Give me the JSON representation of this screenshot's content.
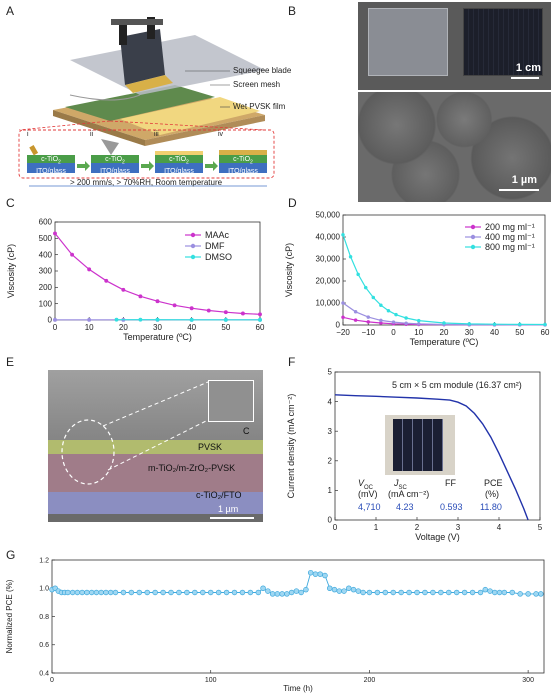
{
  "panels": {
    "A": "A",
    "B": "B",
    "C": "C",
    "D": "D",
    "E": "E",
    "F": "F",
    "G": "G"
  },
  "schematic": {
    "labels": [
      "Squeegee blade",
      "Screen mesh",
      "Wet PVSK film"
    ],
    "steps": [
      "i",
      "ii",
      "iii",
      "iv"
    ],
    "layer_top": "c-TiO",
    "layer_top_sub": "2",
    "layer_bottom": "ITO/glass",
    "conditions": "> 200 mm/s,  > 70%RH, Room temperature"
  },
  "photo": {
    "scale_top": "1 cm",
    "scale_bottom": "1 µm"
  },
  "chart_C": {
    "type": "line",
    "xlabel": "Temperature (ºC)",
    "ylabel": "Viscosity (cP)",
    "xlim": [
      0,
      60
    ],
    "ylim": [
      0,
      600
    ],
    "xticks": [
      0,
      10,
      20,
      30,
      40,
      50,
      60
    ],
    "yticks": [
      0,
      100,
      200,
      300,
      400,
      500,
      600
    ],
    "series": [
      {
        "name": "MAAc",
        "color": "#cc33cc",
        "x": [
          0,
          5,
          10,
          15,
          20,
          25,
          30,
          35,
          40,
          45,
          50,
          55,
          60
        ],
        "y": [
          530,
          400,
          310,
          240,
          185,
          145,
          115,
          90,
          72,
          58,
          48,
          40,
          35
        ]
      },
      {
        "name": "DMF",
        "color": "#9b8fe0",
        "x": [
          0,
          10,
          20,
          30,
          40,
          50,
          60
        ],
        "y": [
          1,
          1,
          1,
          1,
          1,
          1,
          1
        ]
      },
      {
        "name": "DMSO",
        "color": "#33e0e0",
        "x": [
          18,
          25,
          30,
          40,
          50,
          60
        ],
        "y": [
          2,
          2,
          2,
          1,
          1,
          1
        ]
      }
    ]
  },
  "chart_D": {
    "type": "line",
    "xlabel": "Temperature (ºC)",
    "ylabel": "Viscosity (cP)",
    "xlim": [
      -20,
      60
    ],
    "ylim": [
      0,
      50000
    ],
    "xticks": [
      -20,
      -10,
      0,
      10,
      20,
      30,
      40,
      50,
      60
    ],
    "xticklabels": [
      "−20",
      "−10",
      "0",
      "10",
      "20",
      "30",
      "40",
      "50",
      "60"
    ],
    "yticks": [
      0,
      10000,
      20000,
      30000,
      40000,
      50000
    ],
    "yticklabels": [
      "0",
      "10,000",
      "20,000",
      "30,000",
      "40,000",
      "50,000"
    ],
    "series": [
      {
        "name": "200 mg ml⁻¹",
        "color": "#cc33cc",
        "x": [
          -20,
          -15,
          -10,
          -5,
          0,
          5,
          10,
          20,
          30,
          40,
          50,
          60
        ],
        "y": [
          3500,
          2200,
          1400,
          900,
          550,
          350,
          250,
          150,
          100,
          80,
          70,
          60
        ]
      },
      {
        "name": "400 mg ml⁻¹",
        "color": "#9b8fe0",
        "x": [
          -20,
          -15,
          -10,
          -5,
          0,
          5,
          10,
          20,
          30,
          40,
          50,
          60
        ],
        "y": [
          10000,
          6000,
          3600,
          2100,
          1300,
          800,
          500,
          250,
          160,
          120,
          100,
          90
        ]
      },
      {
        "name": "800 mg ml⁻¹",
        "color": "#33e0e0",
        "x": [
          -20,
          -17,
          -14,
          -11,
          -8,
          -5,
          -2,
          1,
          5,
          10,
          20,
          30,
          40,
          50,
          60
        ],
        "y": [
          41000,
          31000,
          23000,
          17000,
          12500,
          9000,
          6500,
          4700,
          3200,
          2000,
          900,
          500,
          350,
          280,
          250
        ]
      }
    ]
  },
  "cross_section": {
    "layers": [
      "C",
      "PVSK",
      "m-TiO₂/m-ZrO₂-PVSK",
      "c-TiO₂/FTO"
    ],
    "scale": "1 µm"
  },
  "chart_F": {
    "type": "line",
    "xlabel": "Voltage (V)",
    "ylabel": "Current density (mA cm⁻²)",
    "xlim": [
      0,
      5
    ],
    "ylim": [
      0,
      5
    ],
    "xticks": [
      0,
      1,
      2,
      3,
      4,
      5
    ],
    "yticks": [
      0,
      1,
      2,
      3,
      4,
      5
    ],
    "annotation": "5 cm × 5 cm module (16.37 cm²)",
    "series": [
      {
        "name": "",
        "color": "#2233aa",
        "x": [
          0,
          0.5,
          1,
          1.5,
          2,
          2.5,
          2.8,
          3.0,
          3.2,
          3.4,
          3.6,
          3.8,
          4.0,
          4.2,
          4.4,
          4.6,
          4.71
        ],
        "y": [
          4.23,
          4.2,
          4.18,
          4.15,
          4.12,
          4.08,
          4.05,
          3.98,
          3.85,
          3.6,
          3.25,
          2.8,
          2.25,
          1.65,
          1.05,
          0.4,
          0.0
        ]
      }
    ],
    "table": {
      "headers": [
        "V_OC",
        "J_SC",
        "FF",
        "PCE"
      ],
      "header_main": [
        "V",
        "J",
        "FF",
        "PCE"
      ],
      "header_sub": [
        "OC",
        "SC",
        "",
        ""
      ],
      "units": [
        "(mV)",
        "(mA cm⁻²)",
        "",
        "(%)"
      ],
      "values": [
        "4,710",
        "4.23",
        "0.593",
        "11.80"
      ]
    }
  },
  "chart_G": {
    "type": "scatter",
    "xlabel": "Time (h)",
    "ylabel": "Normalized PCE (%)",
    "xlim": [
      0,
      310
    ],
    "ylim": [
      0.4,
      1.2
    ],
    "xticks": [
      0,
      100,
      200,
      300
    ],
    "yticks": [
      0.4,
      0.6,
      0.8,
      1.0,
      1.2
    ],
    "series": [
      {
        "name": "",
        "color": "#3fa9dd",
        "x": [
          0,
          2,
          4,
          6,
          8,
          10,
          13,
          16,
          19,
          22,
          25,
          28,
          31,
          34,
          37,
          40,
          45,
          50,
          55,
          60,
          65,
          70,
          75,
          80,
          85,
          90,
          95,
          100,
          105,
          110,
          115,
          120,
          125,
          130,
          133,
          136,
          139,
          142,
          145,
          148,
          151,
          154,
          157,
          160,
          163,
          166,
          169,
          172,
          175,
          178,
          181,
          184,
          187,
          190,
          193,
          196,
          200,
          205,
          210,
          215,
          220,
          225,
          230,
          235,
          240,
          245,
          250,
          255,
          260,
          265,
          270,
          273,
          276,
          279,
          282,
          285,
          290,
          295,
          300,
          305,
          308
        ],
        "y": [
          0.99,
          1.0,
          0.98,
          0.97,
          0.97,
          0.97,
          0.97,
          0.97,
          0.97,
          0.97,
          0.97,
          0.97,
          0.97,
          0.97,
          0.97,
          0.97,
          0.97,
          0.97,
          0.97,
          0.97,
          0.97,
          0.97,
          0.97,
          0.97,
          0.97,
          0.97,
          0.97,
          0.97,
          0.97,
          0.97,
          0.97,
          0.97,
          0.97,
          0.97,
          1.0,
          0.98,
          0.96,
          0.96,
          0.96,
          0.96,
          0.97,
          0.98,
          0.97,
          0.99,
          1.11,
          1.1,
          1.1,
          1.09,
          1.0,
          0.99,
          0.98,
          0.98,
          1.0,
          0.99,
          0.98,
          0.97,
          0.97,
          0.97,
          0.97,
          0.97,
          0.97,
          0.97,
          0.97,
          0.97,
          0.97,
          0.97,
          0.97,
          0.97,
          0.97,
          0.97,
          0.97,
          0.99,
          0.98,
          0.97,
          0.97,
          0.97,
          0.97,
          0.96,
          0.96,
          0.96,
          0.96
        ]
      }
    ]
  }
}
